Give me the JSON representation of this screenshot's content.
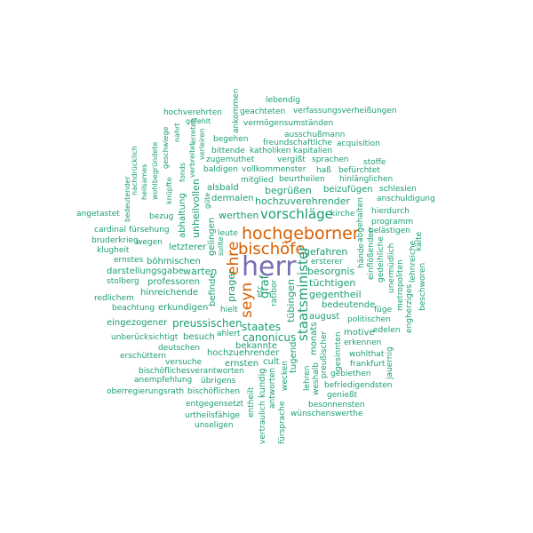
{
  "colors": {
    "teal": "#1b9e77",
    "orange": "#d95f02",
    "purple": "#7570b3"
  },
  "words": [
    {
      "t": "herr",
      "c": "purple"
    },
    {
      "t": "hochgeborner",
      "c": "orange"
    },
    {
      "t": "bischöfe",
      "c": "orange"
    },
    {
      "t": "seyn",
      "c": "orange"
    },
    {
      "t": "ehre",
      "c": "orange"
    },
    {
      "t": "vorschläge",
      "c": "teal"
    },
    {
      "t": "staatsminister",
      "c": "teal"
    },
    {
      "t": "graf",
      "c": "teal"
    },
    {
      "t": "lebendig",
      "c": "teal"
    },
    {
      "t": "geachteten",
      "c": "teal"
    },
    {
      "t": "verfassungsverheißungen",
      "c": "teal"
    },
    {
      "t": "hochverehrten",
      "c": "teal"
    },
    {
      "t": "vermögensumständen",
      "c": "teal"
    },
    {
      "t": "gefehlt",
      "c": "teal"
    },
    {
      "t": "ausschußmann",
      "c": "teal"
    },
    {
      "t": "begehen",
      "c": "teal"
    },
    {
      "t": "freundschaftliche",
      "c": "teal"
    },
    {
      "t": "acquisition",
      "c": "teal"
    },
    {
      "t": "bittende",
      "c": "teal"
    },
    {
      "t": "katholiken",
      "c": "teal"
    },
    {
      "t": "kapitalien",
      "c": "teal"
    },
    {
      "t": "zugemuthet",
      "c": "teal"
    },
    {
      "t": "vergißt",
      "c": "teal"
    },
    {
      "t": "sprachen",
      "c": "teal"
    },
    {
      "t": "stoffe",
      "c": "teal"
    },
    {
      "t": "baldigen",
      "c": "teal"
    },
    {
      "t": "vollkommenster",
      "c": "teal"
    },
    {
      "t": "haß",
      "c": "teal"
    },
    {
      "t": "befürchtet",
      "c": "teal"
    },
    {
      "t": "mitglied",
      "c": "teal"
    },
    {
      "t": "beurtheilen",
      "c": "teal"
    },
    {
      "t": "hinlänglichen",
      "c": "teal"
    },
    {
      "t": "alsbald",
      "c": "teal"
    },
    {
      "t": "begrüßen",
      "c": "teal"
    },
    {
      "t": "beizufügen",
      "c": "teal"
    },
    {
      "t": "schlesien",
      "c": "teal"
    },
    {
      "t": "dermalen",
      "c": "teal"
    },
    {
      "t": "hochzuverehrender",
      "c": "teal"
    },
    {
      "t": "anschuldigung",
      "c": "teal"
    },
    {
      "t": "angetastet",
      "c": "teal"
    },
    {
      "t": "bezug",
      "c": "teal"
    },
    {
      "t": "werthen",
      "c": "teal"
    },
    {
      "t": "kirche",
      "c": "teal"
    },
    {
      "t": "hierdurch",
      "c": "teal"
    },
    {
      "t": "programm",
      "c": "teal"
    },
    {
      "t": "cardinal",
      "c": "teal"
    },
    {
      "t": "fürsehung",
      "c": "teal"
    },
    {
      "t": "leute",
      "c": "teal"
    },
    {
      "t": "belästigen",
      "c": "teal"
    },
    {
      "t": "bruderkrieg",
      "c": "teal"
    },
    {
      "t": "wegen",
      "c": "teal"
    },
    {
      "t": "klugheit",
      "c": "teal"
    },
    {
      "t": "letzterer",
      "c": "teal"
    },
    {
      "t": "gefahren",
      "c": "teal"
    },
    {
      "t": "ernstes",
      "c": "teal"
    },
    {
      "t": "böhmischen",
      "c": "teal"
    },
    {
      "t": "ersterer",
      "c": "teal"
    },
    {
      "t": "darstellungsgabe",
      "c": "teal"
    },
    {
      "t": "warten",
      "c": "teal"
    },
    {
      "t": "besorgnis",
      "c": "teal"
    },
    {
      "t": "stolberg",
      "c": "teal"
    },
    {
      "t": "professoren",
      "c": "teal"
    },
    {
      "t": "tüchtigen",
      "c": "teal"
    },
    {
      "t": "hinreichende",
      "c": "teal"
    },
    {
      "t": "gegentheil",
      "c": "teal"
    },
    {
      "t": "redlichem",
      "c": "teal"
    },
    {
      "t": "beachtung",
      "c": "teal"
    },
    {
      "t": "erkundigen",
      "c": "teal"
    },
    {
      "t": "bedeutende",
      "c": "teal"
    },
    {
      "t": "füge",
      "c": "teal"
    },
    {
      "t": "august",
      "c": "teal"
    },
    {
      "t": "politischen",
      "c": "teal"
    },
    {
      "t": "eingezogener",
      "c": "teal"
    },
    {
      "t": "preussischen",
      "c": "teal"
    },
    {
      "t": "staates",
      "c": "teal"
    },
    {
      "t": "motive",
      "c": "teal"
    },
    {
      "t": "edelen",
      "c": "teal"
    },
    {
      "t": "unberücksichtigt",
      "c": "teal"
    },
    {
      "t": "besuch",
      "c": "teal"
    },
    {
      "t": "ahlert",
      "c": "teal"
    },
    {
      "t": "canonicus",
      "c": "teal"
    },
    {
      "t": "erkennen",
      "c": "teal"
    },
    {
      "t": "deutschen",
      "c": "teal"
    },
    {
      "t": "bekannte",
      "c": "teal"
    },
    {
      "t": "erschüttern",
      "c": "teal"
    },
    {
      "t": "hochzuehrender",
      "c": "teal"
    },
    {
      "t": "wohlthat",
      "c": "teal"
    },
    {
      "t": "versuche",
      "c": "teal"
    },
    {
      "t": "ernsten",
      "c": "teal"
    },
    {
      "t": "cult",
      "c": "teal"
    },
    {
      "t": "frankfurt",
      "c": "teal"
    },
    {
      "t": "bischöflichesverantworten",
      "c": "teal"
    },
    {
      "t": "gebiethen",
      "c": "teal"
    },
    {
      "t": "anempfehlung",
      "c": "teal"
    },
    {
      "t": "übrigens",
      "c": "teal"
    },
    {
      "t": "befriedigendsten",
      "c": "teal"
    },
    {
      "t": "oberregierungsrath",
      "c": "teal"
    },
    {
      "t": "bischöflichen",
      "c": "teal"
    },
    {
      "t": "genießt",
      "c": "teal"
    },
    {
      "t": "entgegensetzt",
      "c": "teal"
    },
    {
      "t": "besonnensten",
      "c": "teal"
    },
    {
      "t": "urtheilsfähige",
      "c": "teal"
    },
    {
      "t": "wünschenswerthe",
      "c": "teal"
    },
    {
      "t": "unseligen",
      "c": "teal"
    },
    {
      "t": "abhaltung",
      "c": "teal"
    },
    {
      "t": "unheilvollen",
      "c": "teal"
    },
    {
      "t": "gelingen",
      "c": "teal"
    },
    {
      "t": "befinde",
      "c": "teal"
    },
    {
      "t": "prager",
      "c": "teal"
    },
    {
      "t": "tübingen",
      "c": "teal"
    },
    {
      "t": "hielt",
      "c": "teal"
    },
    {
      "t": "etc",
      "c": "teal"
    },
    {
      "t": "ratibor",
      "c": "teal"
    },
    {
      "t": "tugend",
      "c": "teal"
    },
    {
      "t": "monats",
      "c": "teal"
    },
    {
      "t": "kundig",
      "c": "teal"
    },
    {
      "t": "entheilt",
      "c": "teal"
    },
    {
      "t": "vertraulich",
      "c": "teal"
    },
    {
      "t": "antworten",
      "c": "teal"
    },
    {
      "t": "fürsprache",
      "c": "teal"
    },
    {
      "t": "wecken",
      "c": "teal"
    },
    {
      "t": "lehren",
      "c": "teal"
    },
    {
      "t": "weshalb",
      "c": "teal"
    },
    {
      "t": "preußischer",
      "c": "teal"
    },
    {
      "t": "gesinnten",
      "c": "teal"
    },
    {
      "t": "jauernig",
      "c": "teal"
    },
    {
      "t": "abgehalten",
      "c": "teal"
    },
    {
      "t": "einflößenden",
      "c": "teal"
    },
    {
      "t": "gedeihliche",
      "c": "teal"
    },
    {
      "t": "unermüdlich",
      "c": "teal"
    },
    {
      "t": "metropoliten",
      "c": "teal"
    },
    {
      "t": "engherziges",
      "c": "teal"
    },
    {
      "t": "lehnreiche",
      "c": "teal"
    },
    {
      "t": "beschworen",
      "c": "teal"
    },
    {
      "t": "kälte",
      "c": "teal"
    },
    {
      "t": "hände",
      "c": "teal"
    },
    {
      "t": "ankommen",
      "c": "teal"
    },
    {
      "t": "nahrt",
      "c": "teal"
    },
    {
      "t": "geschwiege",
      "c": "teal"
    },
    {
      "t": "erreten",
      "c": "teal"
    },
    {
      "t": "verleiren",
      "c": "teal"
    },
    {
      "t": "verbreitet",
      "c": "teal"
    },
    {
      "t": "fonds",
      "c": "teal"
    },
    {
      "t": "knüpfte",
      "c": "teal"
    },
    {
      "t": "wohlbegründete",
      "c": "teal"
    },
    {
      "t": "heilsames",
      "c": "teal"
    },
    {
      "t": "nachdrücklich",
      "c": "teal"
    },
    {
      "t": "bedeutender",
      "c": "teal"
    },
    {
      "t": "güte",
      "c": "teal"
    },
    {
      "t": "sollte",
      "c": "teal"
    }
  ]
}
